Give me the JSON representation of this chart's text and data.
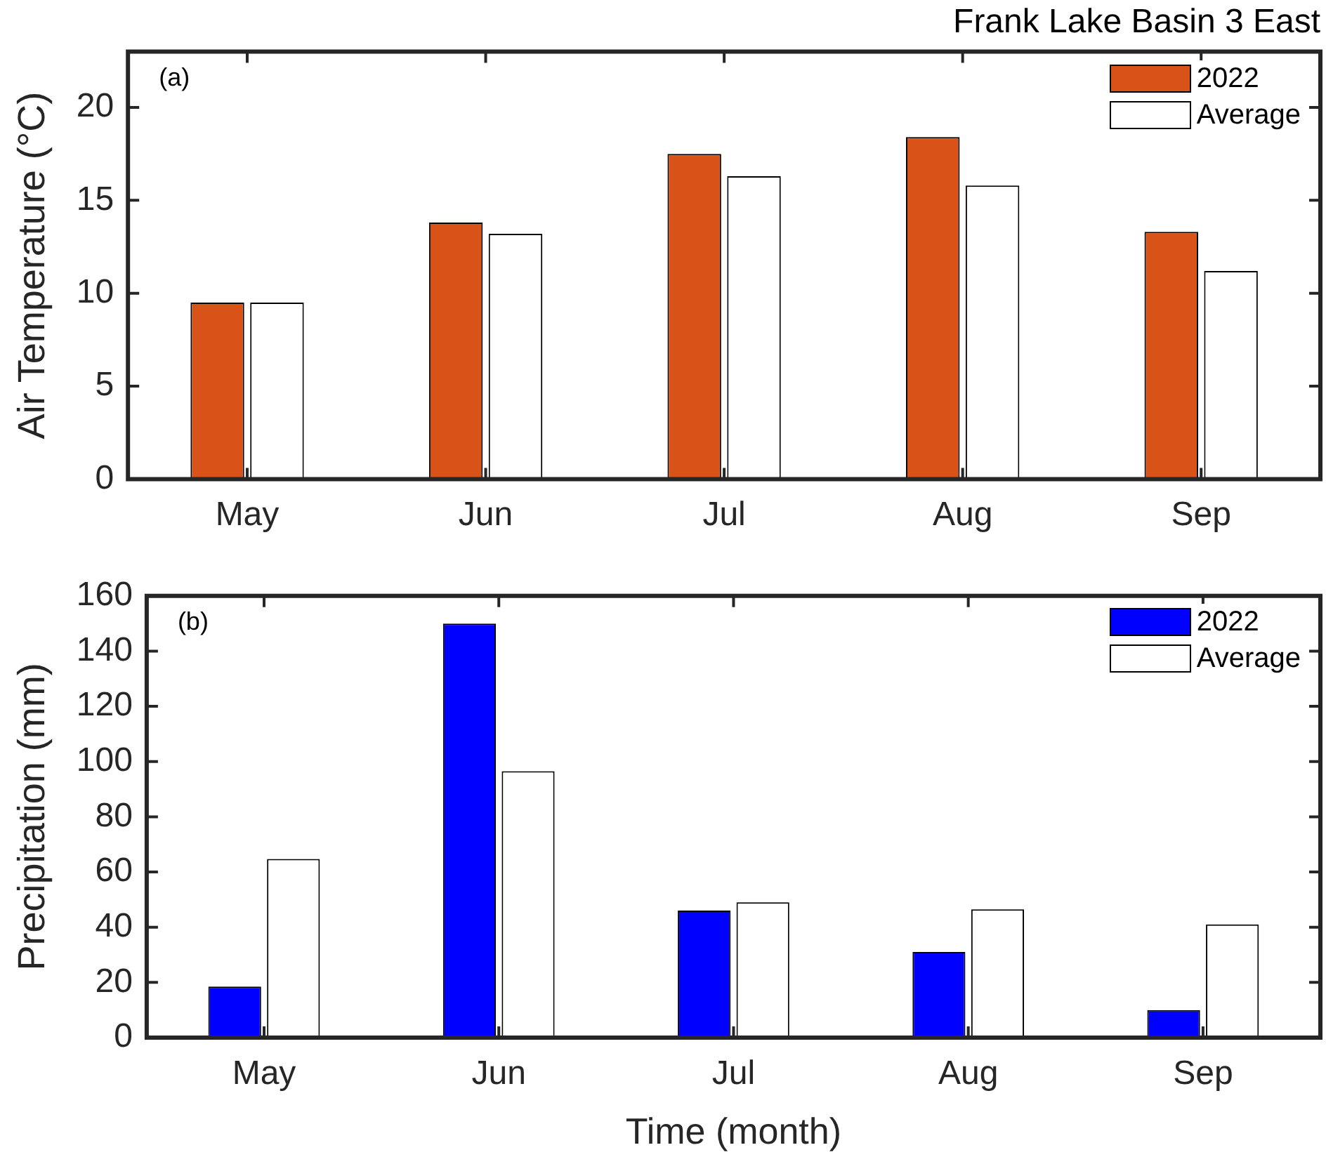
{
  "chart_data": [
    {
      "type": "bar",
      "title": "Frank Lake Basin 3 East",
      "ylabel": "Air Temperature (°C)",
      "annotations": [
        "(a)"
      ],
      "categories": [
        "May",
        "Jun",
        "Jul",
        "Aug",
        "Sep"
      ],
      "series": [
        {
          "name": "2022",
          "color": "#d95319",
          "values": [
            9.5,
            13.8,
            17.5,
            18.4,
            13.3
          ]
        },
        {
          "name": "Average",
          "color": "#ffffff",
          "values": [
            9.5,
            13.2,
            16.3,
            15.8,
            11.2
          ]
        }
      ],
      "ylim": [
        0,
        23
      ],
      "yticks": [
        0,
        5,
        10,
        15,
        20
      ],
      "legend": "top right",
      "grid": false
    },
    {
      "type": "bar",
      "xlabel": "Time (month)",
      "ylabel": "Precipitation (mm)",
      "annotations": [
        "(b)"
      ],
      "categories": [
        "May",
        "Jun",
        "Jul",
        "Aug",
        "Sep"
      ],
      "series": [
        {
          "name": "2022",
          "color": "#0000ff",
          "values": [
            18.5,
            150,
            46,
            31,
            10
          ]
        },
        {
          "name": "Average",
          "color": "#ffffff",
          "values": [
            64.7,
            96.5,
            49,
            46.5,
            41
          ]
        }
      ],
      "ylim": [
        0,
        160
      ],
      "yticks": [
        0,
        20,
        40,
        60,
        80,
        100,
        120,
        140,
        160
      ],
      "legend": "top right",
      "grid": false
    }
  ]
}
